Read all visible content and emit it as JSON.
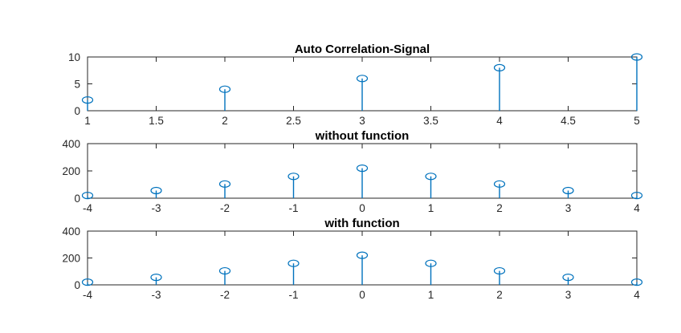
{
  "chart_data": [
    {
      "type": "stem",
      "title": "Auto Correlation-Signal",
      "x": [
        1,
        2,
        3,
        4,
        5
      ],
      "values": [
        2,
        4,
        6,
        8,
        10
      ],
      "xlim": [
        1,
        5
      ],
      "ylim": [
        0,
        10
      ],
      "xticks": [
        1,
        1.5,
        2,
        2.5,
        3,
        3.5,
        4,
        4.5,
        5
      ],
      "yticks": [
        0,
        5,
        10
      ],
      "xticklabels": [
        "1",
        "1.5",
        "2",
        "2.5",
        "3",
        "3.5",
        "4",
        "4.5",
        "5"
      ],
      "yticklabels": [
        "0",
        "5",
        "10"
      ],
      "grid": false,
      "color": "#0072BD"
    },
    {
      "type": "stem",
      "title": "without function",
      "x": [
        -4,
        -3,
        -2,
        -1,
        0,
        1,
        2,
        3,
        4
      ],
      "values": [
        20,
        56,
        104,
        160,
        220,
        160,
        104,
        56,
        20
      ],
      "xlim": [
        -4,
        4
      ],
      "ylim": [
        0,
        400
      ],
      "xticks": [
        -4,
        -3,
        -2,
        -1,
        0,
        1,
        2,
        3,
        4
      ],
      "yticks": [
        0,
        200,
        400
      ],
      "xticklabels": [
        "-4",
        "-3",
        "-2",
        "-1",
        "0",
        "1",
        "2",
        "3",
        "4"
      ],
      "yticklabels": [
        "0",
        "200",
        "400"
      ],
      "grid": false,
      "color": "#0072BD"
    },
    {
      "type": "stem",
      "title": "with function",
      "x": [
        -4,
        -3,
        -2,
        -1,
        0,
        1,
        2,
        3,
        4
      ],
      "values": [
        20,
        56,
        104,
        160,
        220,
        160,
        104,
        56,
        20
      ],
      "xlim": [
        -4,
        4
      ],
      "ylim": [
        0,
        400
      ],
      "xticks": [
        -4,
        -3,
        -2,
        -1,
        0,
        1,
        2,
        3,
        4
      ],
      "yticks": [
        0,
        200,
        400
      ],
      "xticklabels": [
        "-4",
        "-3",
        "-2",
        "-1",
        "0",
        "1",
        "2",
        "3",
        "4"
      ],
      "yticklabels": [
        "0",
        "200",
        "400"
      ],
      "grid": false,
      "color": "#0072BD"
    }
  ]
}
